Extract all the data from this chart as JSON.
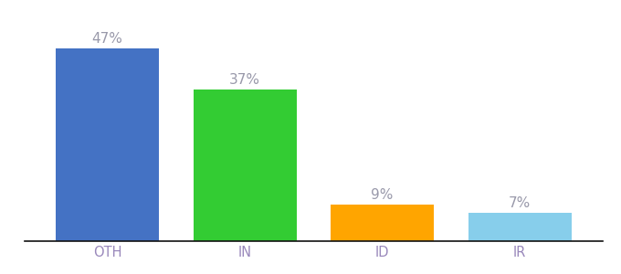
{
  "categories": [
    "OTH",
    "IN",
    "ID",
    "IR"
  ],
  "values": [
    47,
    37,
    9,
    7
  ],
  "bar_colors": [
    "#4472C4",
    "#33CC33",
    "#FFA500",
    "#87CEEB"
  ],
  "bar_labels": [
    "47%",
    "37%",
    "9%",
    "7%"
  ],
  "label_color": "#9999AA",
  "tick_label_color": "#9988BB",
  "background_color": "#ffffff",
  "ylim": [
    0,
    54
  ],
  "bar_width": 0.75,
  "label_fontsize": 11,
  "tick_fontsize": 10.5
}
